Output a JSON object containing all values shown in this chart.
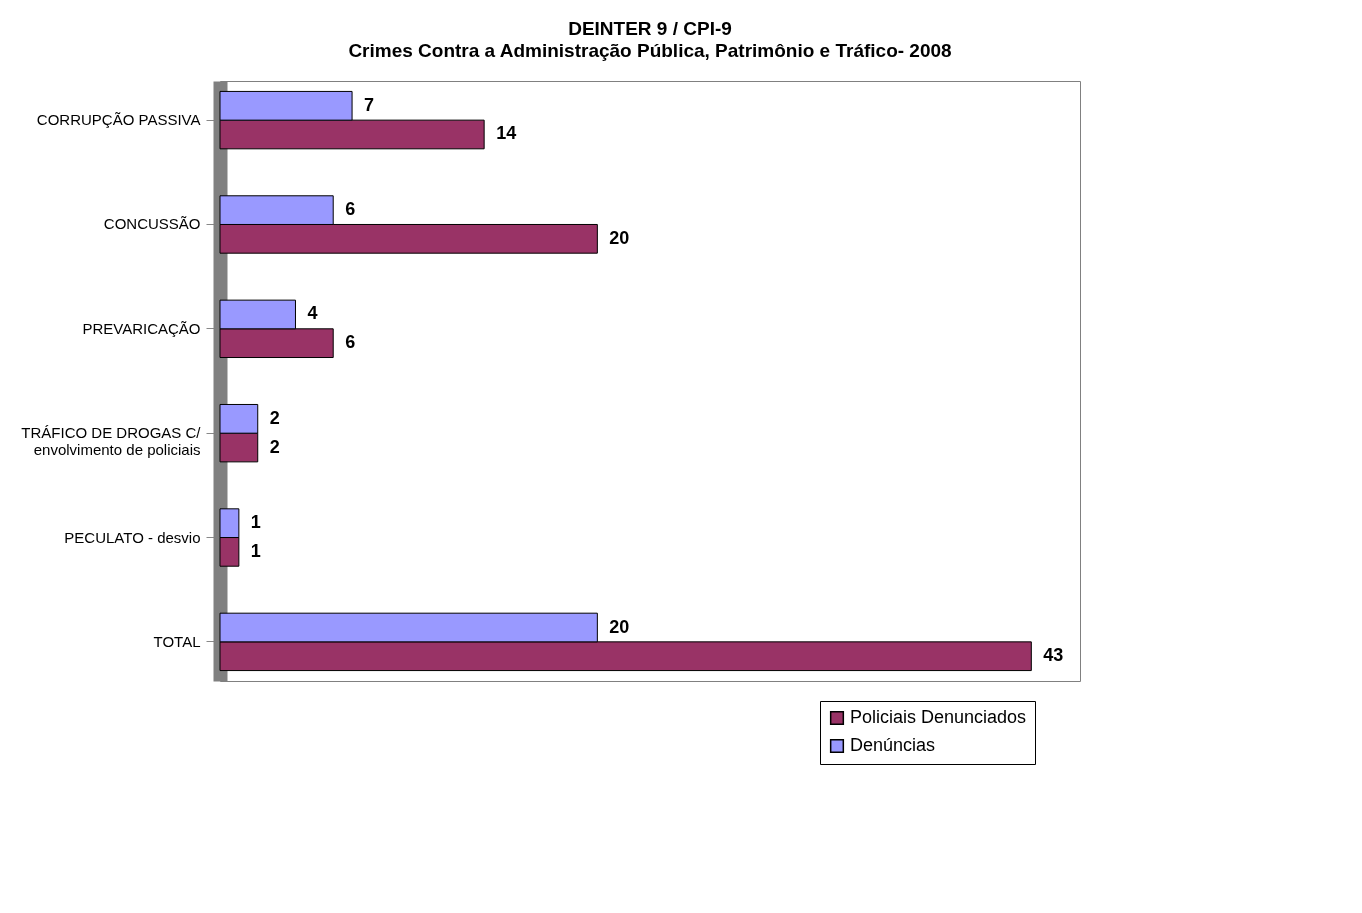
{
  "chart_data": {
    "type": "bar",
    "orientation": "horizontal",
    "title": "DEINTER 9 / CPI-9",
    "subtitle": "Crimes Contra a Administração Pública, Patrimônio e Tráfico- 2008",
    "categories": [
      "CORRUPÇÃO PASSIVA",
      "CONCUSSÃO",
      "PREVARICAÇÃO",
      "TRÁFICO DE DROGAS C/\nenvolvimento de policiais",
      "PECULATO - desvio",
      "TOTAL"
    ],
    "series": [
      {
        "name": "Policiais Denunciados",
        "color": "#993366",
        "values": [
          14,
          20,
          6,
          2,
          1,
          43
        ]
      },
      {
        "name": "Denúncias",
        "color": "#9999ff",
        "values": [
          7,
          6,
          4,
          2,
          1,
          20
        ]
      }
    ],
    "data_labels": true,
    "legend": "bottom right",
    "tick_labels": "y"
  }
}
